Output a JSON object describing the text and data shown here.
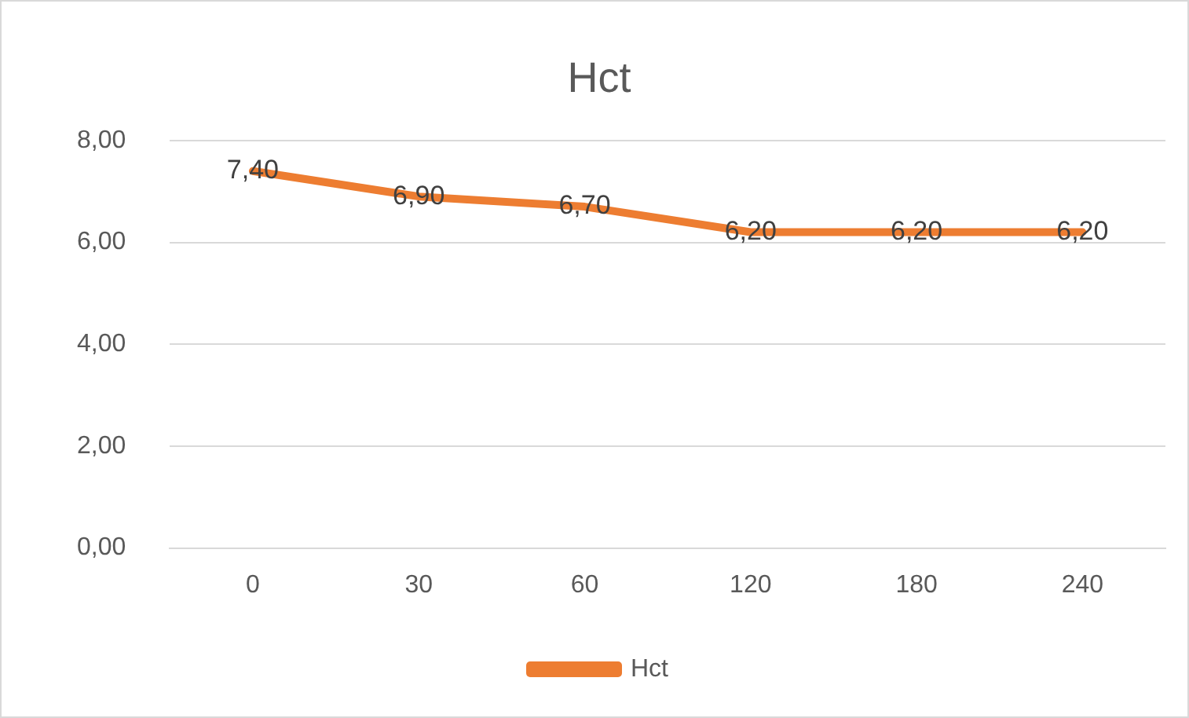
{
  "chart_data": {
    "type": "line",
    "title": "Hct",
    "categories": [
      "0",
      "30",
      "60",
      "120",
      "180",
      "240"
    ],
    "series": [
      {
        "name": "Hct",
        "color": "#ed7d31",
        "values": [
          7.4,
          6.9,
          6.7,
          6.2,
          6.2,
          6.2
        ],
        "value_labels": [
          "7,40",
          "6,90",
          "6,70",
          "6,20",
          "6,20",
          "6,20"
        ]
      }
    ],
    "ylim": [
      0,
      8
    ],
    "yticks": [
      {
        "value": 0,
        "label": "0,00"
      },
      {
        "value": 2,
        "label": "2,00"
      },
      {
        "value": 4,
        "label": "4,00"
      },
      {
        "value": 6,
        "label": "6,00"
      },
      {
        "value": 8,
        "label": "8,00"
      }
    ],
    "grid": "y",
    "legend": "bottom",
    "marker": "none",
    "line_style": "solid"
  }
}
